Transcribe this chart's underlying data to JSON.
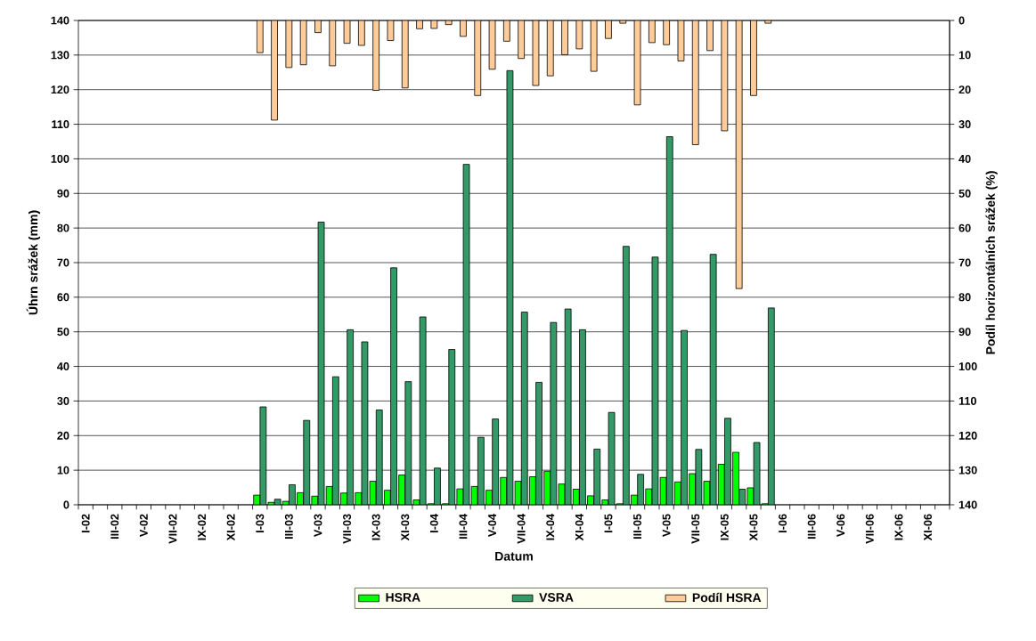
{
  "chart_data": {
    "type": "bar",
    "xlabel": "Datum",
    "ylabel": "Úhrn srážek (mm)",
    "y2label": "Podíl horizontálních srážek (%)",
    "categories": [
      "I-02",
      null,
      "III-02",
      null,
      "V-02",
      null,
      "VII-02",
      null,
      "IX-02",
      null,
      "XI-02",
      null,
      "I-03",
      null,
      "III-03",
      null,
      "V-03",
      null,
      "VII-03",
      null,
      "IX-03",
      null,
      "XI-03",
      null,
      "I-04",
      null,
      "III-04",
      null,
      "V-04",
      null,
      "VII-04",
      null,
      "IX-04",
      null,
      "XI-04",
      null,
      "I-05",
      null,
      "III-05",
      null,
      "V-05",
      null,
      "VII-05",
      null,
      "IX-05",
      null,
      "XI-05",
      null,
      "I-06",
      null,
      "III-06",
      null,
      "V-06",
      null,
      "VII-06",
      null,
      "IX-06",
      null,
      "XI-06",
      null
    ],
    "series": [
      {
        "name": "HSRA",
        "color": "#00ff00",
        "values": [
          null,
          null,
          null,
          null,
          null,
          null,
          null,
          null,
          null,
          null,
          null,
          null,
          2.8,
          0.7,
          1.0,
          3.5,
          2.5,
          5.3,
          3.4,
          3.5,
          6.8,
          4.2,
          8.6,
          1.4,
          0.3,
          0.3,
          4.6,
          5.3,
          4.2,
          7.9,
          6.8,
          8.1,
          9.7,
          6.0,
          4.5,
          2.6,
          1.4,
          0.3,
          2.8,
          4.6,
          7.9,
          6.6,
          9.0,
          6.8,
          11.7,
          15.2,
          4.9,
          0.3,
          null,
          null,
          null,
          null,
          null,
          null,
          null,
          null,
          null,
          null,
          null,
          null
        ]
      },
      {
        "name": "VSRA",
        "color": "#339966",
        "values": [
          null,
          null,
          null,
          null,
          null,
          null,
          null,
          null,
          null,
          null,
          null,
          null,
          28.3,
          1.6,
          5.8,
          24.4,
          81.7,
          37.0,
          50.6,
          47.1,
          27.4,
          68.5,
          35.6,
          54.3,
          10.6,
          44.9,
          98.4,
          19.5,
          24.8,
          125.5,
          55.7,
          35.4,
          52.7,
          56.6,
          50.6,
          16.1,
          26.7,
          74.7,
          8.8,
          71.6,
          106.4,
          50.4,
          16.0,
          72.4,
          25.0,
          4.5,
          18.0,
          56.9,
          null,
          null,
          null,
          null,
          null,
          null,
          null,
          null,
          null,
          null,
          null,
          null
        ]
      },
      {
        "name": "Podíl HSRA",
        "color": "#ffcc99",
        "axis": "y2",
        "values": [
          null,
          null,
          null,
          null,
          null,
          null,
          null,
          null,
          null,
          null,
          null,
          null,
          9.3,
          28.8,
          13.6,
          12.8,
          3.5,
          13.1,
          6.6,
          7.2,
          20.2,
          5.8,
          19.5,
          2.4,
          2.3,
          1.2,
          4.6,
          21.7,
          14.1,
          6.0,
          11.0,
          18.8,
          16.0,
          9.9,
          8.2,
          14.7,
          5.2,
          0.8,
          24.4,
          6.4,
          7.0,
          11.7,
          35.9,
          8.7,
          31.9,
          77.5,
          21.7,
          0.8,
          null,
          null,
          null,
          null,
          null,
          null,
          null,
          null,
          null,
          null,
          null,
          null
        ]
      }
    ],
    "ylim": [
      0,
      140
    ],
    "yticks": [
      0,
      10,
      20,
      30,
      40,
      50,
      60,
      70,
      80,
      90,
      100,
      110,
      120,
      130,
      140
    ],
    "y2lim": [
      140,
      0
    ],
    "y2ticks": [
      0,
      10,
      20,
      30,
      40,
      50,
      60,
      70,
      80,
      90,
      100,
      110,
      120,
      130,
      140
    ],
    "grid": "y",
    "legend": "bottom"
  }
}
